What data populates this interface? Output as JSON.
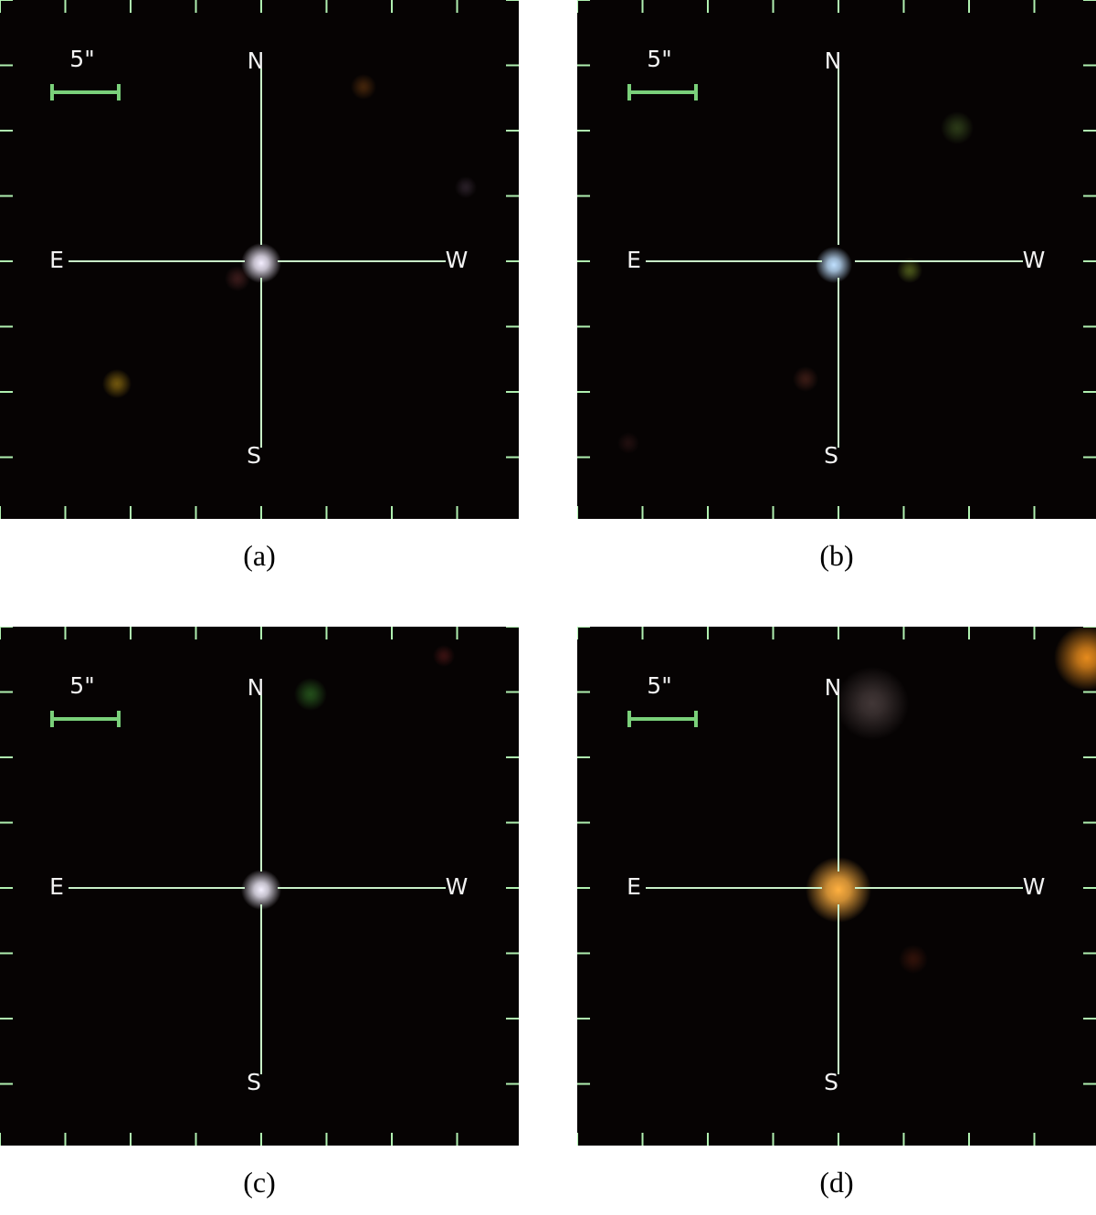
{
  "panels": [
    {
      "scale_label": "5\"",
      "north": "N",
      "east": "E",
      "west": "W",
      "south": "S",
      "caption": "(a)"
    },
    {
      "scale_label": "5\"",
      "north": "N",
      "east": "E",
      "west": "W",
      "south": "S",
      "caption": "(b)"
    },
    {
      "scale_label": "5\"",
      "north": "N",
      "east": "E",
      "west": "W",
      "south": "S",
      "caption": "(c)"
    },
    {
      "scale_label": "5\"",
      "north": "N",
      "east": "E",
      "west": "W",
      "south": "S",
      "caption": "(d)"
    }
  ]
}
